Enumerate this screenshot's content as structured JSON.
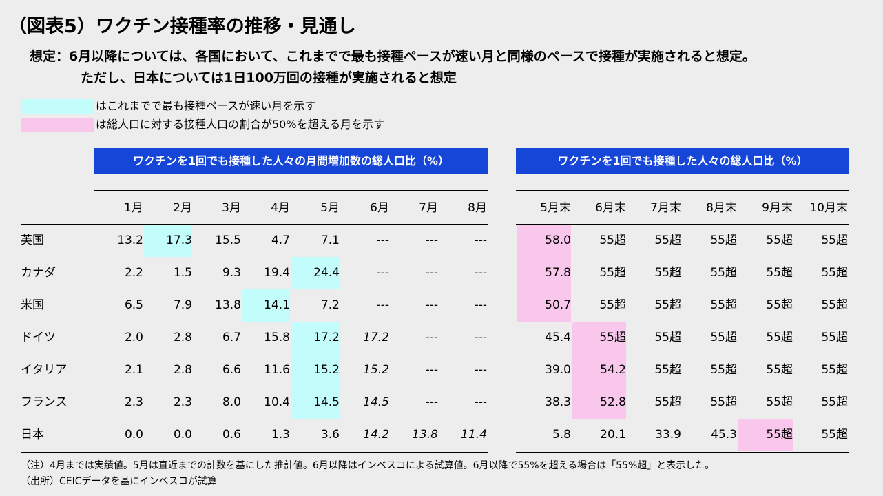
{
  "title": "（図表5）ワクチン接種率の推移・見通し",
  "assumption": {
    "line1": "想定：6月以降については、各国において、これまでで最も接種ペースが速い月と同様のペースで接種が実施されると想定。",
    "line2": "ただし、日本については1日100万回の接種が実施されると想定"
  },
  "legend": [
    {
      "color": "#c2fdfb",
      "label": "はこれまでで最も接種ペースが速い月を示す"
    },
    {
      "color": "#f9c6ec",
      "label": "は総人口に対する接種人口の割合が50%を超える月を示す"
    }
  ],
  "left_table": {
    "header": "ワクチンを1回でも接種した人々の月間増加数の総人口比（%）",
    "columns": [
      "1月",
      "2月",
      "3月",
      "4月",
      "5月",
      "6月",
      "7月",
      "8月"
    ],
    "rows": [
      {
        "label": "英国",
        "values": [
          "13.2",
          "17.3",
          "15.5",
          "4.7",
          "7.1",
          "---",
          "---",
          "---"
        ],
        "highlight": [
          1
        ]
      },
      {
        "label": "カナダ",
        "values": [
          "2.2",
          "1.5",
          "9.3",
          "19.4",
          "24.4",
          "---",
          "---",
          "---"
        ],
        "highlight": [
          4
        ]
      },
      {
        "label": "米国",
        "values": [
          "6.5",
          "7.9",
          "13.8",
          "14.1",
          "7.2",
          "---",
          "---",
          "---"
        ],
        "highlight": [
          3
        ]
      },
      {
        "label": "ドイツ",
        "values": [
          "2.0",
          "2.8",
          "6.7",
          "15.8",
          "17.2",
          "17.2",
          "---",
          "---"
        ],
        "highlight": [
          4
        ]
      },
      {
        "label": "イタリア",
        "values": [
          "2.1",
          "2.8",
          "6.6",
          "11.6",
          "15.2",
          "15.2",
          "---",
          "---"
        ],
        "highlight": [
          4
        ]
      },
      {
        "label": "フランス",
        "values": [
          "2.3",
          "2.3",
          "8.0",
          "10.4",
          "14.5",
          "14.5",
          "---",
          "---"
        ],
        "highlight": [
          4
        ]
      },
      {
        "label": "日本",
        "values": [
          "0.0",
          "0.0",
          "0.6",
          "1.3",
          "3.6",
          "14.2",
          "13.8",
          "11.4"
        ],
        "highlight": []
      }
    ]
  },
  "right_table": {
    "header": "ワクチンを1回でも接種した人々の総人口比（%）",
    "columns": [
      "5月末",
      "6月末",
      "7月末",
      "8月末",
      "9月末",
      "10月末"
    ],
    "rows": [
      {
        "values": [
          "58.0",
          "55超",
          "55超",
          "55超",
          "55超",
          "55超"
        ],
        "highlight": [
          0
        ]
      },
      {
        "values": [
          "57.8",
          "55超",
          "55超",
          "55超",
          "55超",
          "55超"
        ],
        "highlight": [
          0
        ]
      },
      {
        "values": [
          "50.7",
          "55超",
          "55超",
          "55超",
          "55超",
          "55超"
        ],
        "highlight": [
          0
        ]
      },
      {
        "values": [
          "45.4",
          "55超",
          "55超",
          "55超",
          "55超",
          "55超"
        ],
        "highlight": [
          1
        ]
      },
      {
        "values": [
          "39.0",
          "54.2",
          "55超",
          "55超",
          "55超",
          "55超"
        ],
        "highlight": [
          1
        ]
      },
      {
        "values": [
          "38.3",
          "52.8",
          "55超",
          "55超",
          "55超",
          "55超"
        ],
        "highlight": [
          1
        ]
      },
      {
        "values": [
          "5.8",
          "20.1",
          "33.9",
          "45.3",
          "55超",
          "55超"
        ],
        "highlight": [
          4
        ]
      }
    ]
  },
  "notes": [
    "（注）4月までは実績値。5月は直近までの計数を基にした推計値。6月以降はインベスコによる試算値。6月以降で55%を超える場合は「55%超」と表示した。",
    "（出所）CEICデータを基にインベスコが試算"
  ]
}
